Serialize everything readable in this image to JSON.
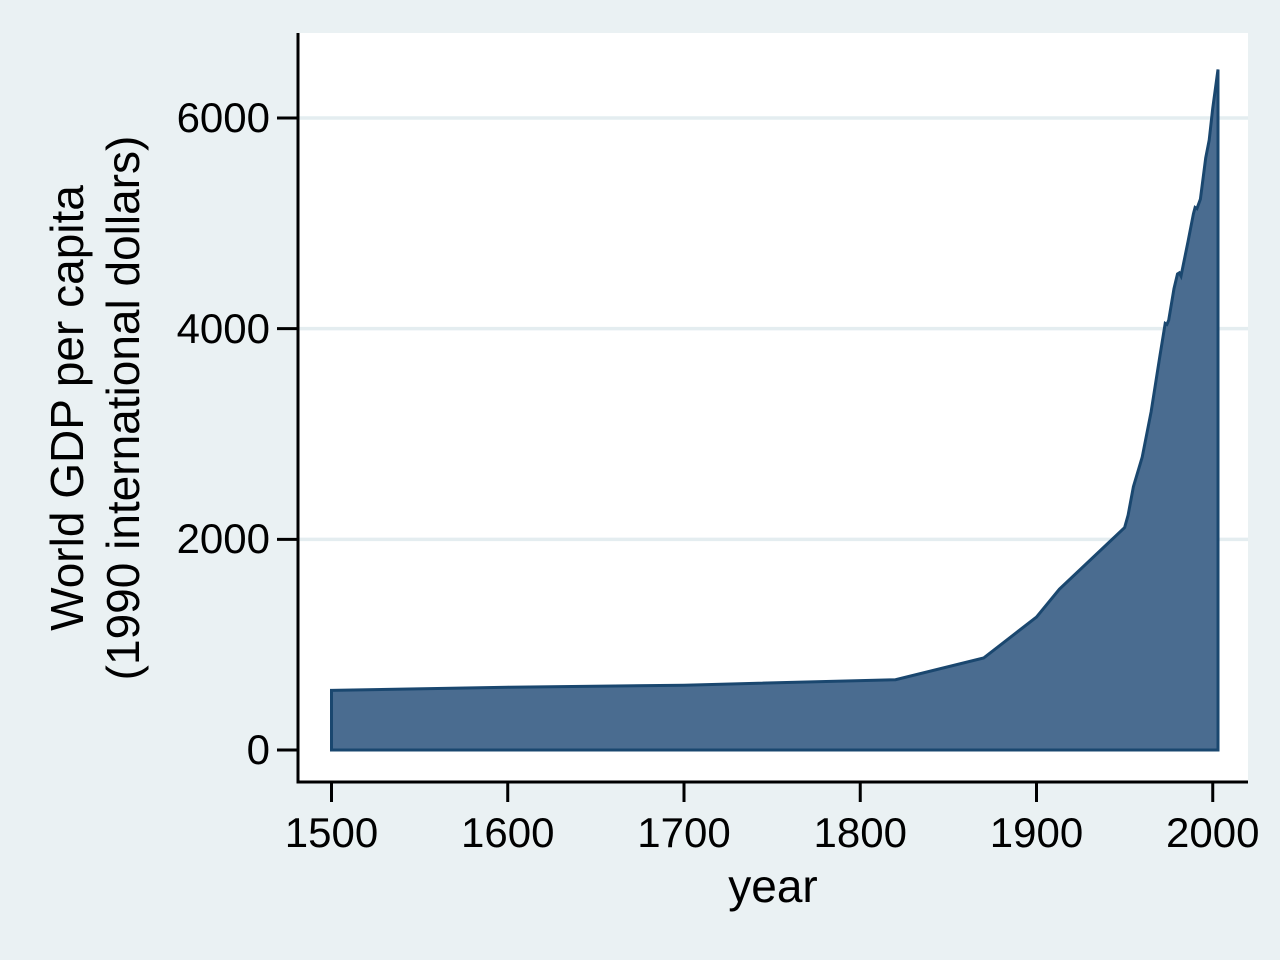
{
  "figure": {
    "background_color": "#eaf1f3"
  },
  "chart_data": {
    "type": "area",
    "title": "",
    "xlabel": "year",
    "ylabel_lines": [
      "World GDP per capita",
      "(1990 international dollars)"
    ],
    "x_ticks": [
      1500,
      1600,
      1700,
      1800,
      1900,
      2000
    ],
    "y_ticks": [
      0,
      2000,
      4000,
      6000
    ],
    "grid_ticks": [
      2000,
      4000,
      6000
    ],
    "xlim": [
      1481,
      2020
    ],
    "ylim": [
      -304,
      6807
    ],
    "grid": "horizontal-y",
    "legend": "none",
    "series": [
      {
        "name": "World GDP per capita (1990 international dollars)",
        "points": [
          [
            1500,
            566
          ],
          [
            1600,
            596
          ],
          [
            1700,
            615
          ],
          [
            1820,
            667
          ],
          [
            1870,
            873
          ],
          [
            1900,
            1262
          ],
          [
            1913,
            1526
          ],
          [
            1950,
            2111
          ],
          [
            1952,
            2230
          ],
          [
            1955,
            2500
          ],
          [
            1960,
            2780
          ],
          [
            1965,
            3210
          ],
          [
            1970,
            3740
          ],
          [
            1973,
            4050
          ],
          [
            1974,
            4040
          ],
          [
            1975,
            4080
          ],
          [
            1978,
            4380
          ],
          [
            1980,
            4520
          ],
          [
            1981,
            4530
          ],
          [
            1982,
            4500
          ],
          [
            1986,
            4830
          ],
          [
            1989,
            5090
          ],
          [
            1990,
            5150
          ],
          [
            1991,
            5140
          ],
          [
            1993,
            5230
          ],
          [
            1996,
            5620
          ],
          [
            1998,
            5790
          ],
          [
            2000,
            6090
          ],
          [
            2003,
            6460
          ]
        ]
      }
    ],
    "style": {
      "area_fill": "#4a6c90",
      "area_stroke": "#1a476f",
      "plot_background": "#ffffff",
      "grid_color": "#e4edf0",
      "axis_color": "#000000",
      "text_color": "#000000"
    }
  }
}
